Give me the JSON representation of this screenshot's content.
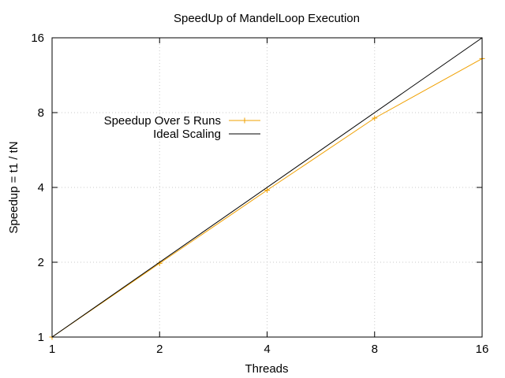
{
  "chart_data": {
    "type": "line",
    "title": "SpeedUp of MandelLoop Execution",
    "xlabel": "Threads",
    "ylabel": "Speedup = t1 / tN",
    "x_scale": "log2",
    "y_scale": "log2",
    "xlim": [
      1,
      16
    ],
    "ylim": [
      1,
      16
    ],
    "xticks": [
      1,
      2,
      4,
      8,
      16
    ],
    "yticks": [
      1,
      2,
      4,
      8,
      16
    ],
    "grid": true,
    "legend_position": "top-left",
    "series": [
      {
        "name": "Speedup Over 5 Runs",
        "color": "#f0a000",
        "marker": "plus",
        "x": [
          1,
          2,
          4,
          8,
          16
        ],
        "y": [
          1,
          1.98,
          3.9,
          7.6,
          13.2
        ]
      },
      {
        "name": "Ideal Scaling",
        "color": "#000000",
        "marker": "none",
        "x": [
          1,
          16
        ],
        "y": [
          1,
          16
        ]
      }
    ]
  }
}
